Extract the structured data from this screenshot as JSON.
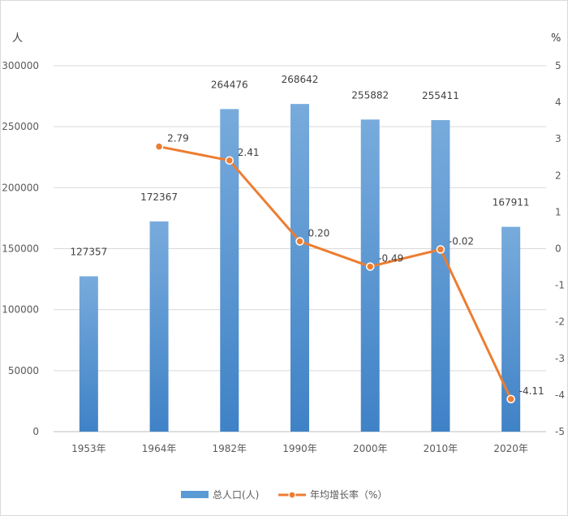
{
  "chart_data": {
    "type": "bar+line",
    "categories": [
      "1953年",
      "1964年",
      "1982年",
      "1990年",
      "2000年",
      "2010年",
      "2020年"
    ],
    "series": [
      {
        "name": "总人口(人)",
        "type": "bar",
        "axis": "left",
        "color": "#5b9bd5",
        "values": [
          127357,
          172367,
          264476,
          268642,
          255882,
          255411,
          167911
        ],
        "labels": [
          "127357",
          "172367",
          "264476",
          "268642",
          "255882",
          "255411",
          "167911"
        ]
      },
      {
        "name": "年均增长率（%）",
        "type": "line",
        "axis": "right",
        "color": "#ed7d31",
        "values": [
          null,
          2.79,
          2.41,
          0.2,
          -0.49,
          -0.02,
          -4.11
        ],
        "labels": [
          "",
          "2.79",
          "2.41",
          "0.20",
          "-0.49",
          "-0.02",
          "-4.11"
        ]
      }
    ],
    "yleft": {
      "unit_label": "人",
      "ylim": [
        0,
        300000
      ],
      "ticks": [
        "0",
        "50000",
        "100000",
        "150000",
        "200000",
        "250000",
        "300000"
      ]
    },
    "yright": {
      "unit_label": "%",
      "ylim": [
        -5,
        5
      ],
      "ticks": [
        "-5",
        "-4",
        "-3",
        "-2",
        "-1",
        "0",
        "1",
        "2",
        "3",
        "4",
        "5"
      ]
    },
    "grid": true,
    "legend": "bottom"
  }
}
